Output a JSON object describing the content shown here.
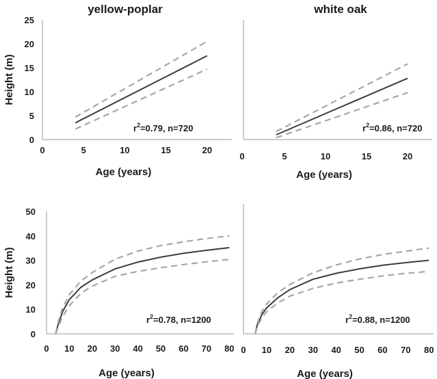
{
  "chart_data": [
    {
      "type": "line",
      "title": "yellow-poplar",
      "xlabel": "Age (years)",
      "ylabel": "Height (m)",
      "xlim": [
        0,
        23
      ],
      "ylim": [
        0,
        25
      ],
      "xticks": [
        0,
        5,
        10,
        15,
        20
      ],
      "yticks": [
        0,
        5,
        10,
        15,
        20,
        25
      ],
      "annotation": {
        "r2": "0.79",
        "n": "720"
      },
      "series": [
        {
          "style": "solid",
          "x": [
            4,
            20
          ],
          "y": [
            3.5,
            17.5
          ]
        },
        {
          "style": "dashed",
          "x": [
            4,
            20
          ],
          "y": [
            4.7,
            20.5
          ]
        },
        {
          "style": "dashed",
          "x": [
            4,
            20
          ],
          "y": [
            2.2,
            14.7
          ]
        }
      ]
    },
    {
      "type": "line",
      "title": "white oak",
      "xlabel": "Age (years)",
      "ylabel": "",
      "xlim": [
        0,
        23
      ],
      "ylim": [
        0,
        25
      ],
      "xticks": [
        0,
        5,
        10,
        15,
        20
      ],
      "yticks": [],
      "annotation": {
        "r2": "0.86",
        "n": "720"
      },
      "series": [
        {
          "style": "solid",
          "x": [
            4,
            20
          ],
          "y": [
            1,
            12.8
          ]
        },
        {
          "style": "dashed",
          "x": [
            4,
            20
          ],
          "y": [
            1.7,
            15.8
          ]
        },
        {
          "style": "dashed",
          "x": [
            4,
            20
          ],
          "y": [
            0.4,
            9.8
          ]
        }
      ]
    },
    {
      "type": "line",
      "title": "",
      "xlabel": "Age (years)",
      "ylabel": "Height (m)",
      "xlim": [
        0,
        82
      ],
      "ylim": [
        0,
        50
      ],
      "xticks": [
        0,
        10,
        20,
        30,
        40,
        50,
        60,
        70,
        80
      ],
      "yticks": [
        0,
        10,
        20,
        30,
        40,
        50
      ],
      "annotation": {
        "r2": "0.78",
        "n": "1200"
      },
      "series": [
        {
          "style": "solid",
          "x": [
            4,
            5,
            7,
            10,
            15,
            20,
            30,
            40,
            50,
            60,
            70,
            80
          ],
          "y": [
            0,
            3.5,
            9,
            14,
            19,
            22,
            26.5,
            29.3,
            31.3,
            32.9,
            34.1,
            35.2
          ]
        },
        {
          "style": "dashed",
          "x": [
            4,
            5,
            7,
            10,
            15,
            20,
            30,
            40,
            50,
            60,
            70,
            80
          ],
          "y": [
            0,
            4.5,
            10.5,
            16,
            21.5,
            25,
            30.5,
            33.8,
            36,
            37.6,
            38.9,
            40
          ]
        },
        {
          "style": "dashed",
          "x": [
            4,
            5,
            7,
            10,
            15,
            20,
            30,
            40,
            50,
            60,
            70,
            80
          ],
          "y": [
            0,
            2.5,
            7,
            11.5,
            16.5,
            19.5,
            23.5,
            25.5,
            27,
            28.3,
            29.4,
            30.4
          ]
        }
      ]
    },
    {
      "type": "line",
      "title": "",
      "xlabel": "Age (years)",
      "ylabel": "",
      "xlim": [
        0,
        82
      ],
      "ylim": [
        0,
        50
      ],
      "xticks": [
        0,
        10,
        20,
        30,
        40,
        50,
        60,
        70,
        80
      ],
      "yticks": [],
      "annotation": {
        "r2": "0.88",
        "n": "1200"
      },
      "series": [
        {
          "style": "solid",
          "x": [
            5,
            6,
            8,
            10,
            15,
            20,
            30,
            40,
            50,
            60,
            70,
            80
          ],
          "y": [
            0,
            3.5,
            7.5,
            10,
            14,
            17,
            21,
            23.3,
            25,
            26.4,
            27.4,
            28.3
          ]
        },
        {
          "style": "dashed",
          "x": [
            5,
            6,
            8,
            10,
            15,
            20,
            30,
            40,
            50,
            60,
            70,
            80
          ],
          "y": [
            0,
            4.2,
            8.8,
            11.5,
            16,
            19,
            23.5,
            26.5,
            28.8,
            30.5,
            31.8,
            33
          ]
        },
        {
          "style": "dashed",
          "x": [
            5,
            6,
            8,
            10,
            15,
            20,
            30,
            40,
            50,
            60,
            70,
            80
          ],
          "y": [
            0,
            2.8,
            6.3,
            8.5,
            12,
            14.5,
            17.5,
            19.5,
            21,
            22.3,
            23.3,
            24
          ]
        }
      ]
    }
  ]
}
